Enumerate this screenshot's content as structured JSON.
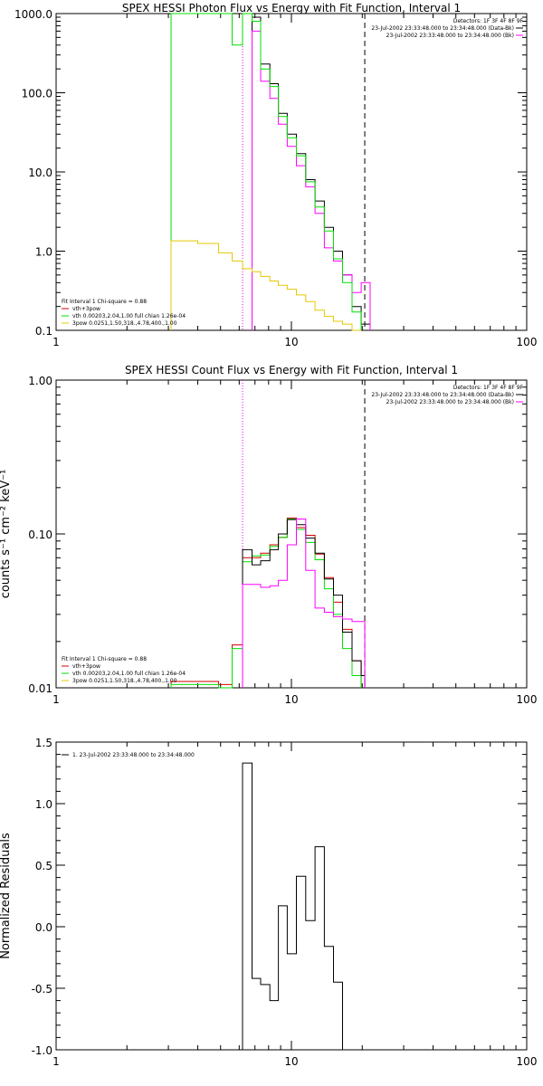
{
  "chart_data": [
    {
      "type": "line",
      "title": "SPEX HESSI Photon Flux vs Energy with Fit Function, Interval 1",
      "ylabel": "",
      "xscale": "log",
      "yscale": "log",
      "xlim": [
        1,
        100
      ],
      "ylim": [
        0.1,
        1000
      ],
      "xticklabels": [
        "1",
        "10",
        "100"
      ],
      "yticks": [
        0.1,
        1,
        10,
        100,
        1000
      ],
      "yticklabels": [
        "0.1",
        "1.0",
        "10.0",
        "100.0",
        "1000.0"
      ],
      "legend_left": [
        "Fit Interval 1    Chi-square = 0.88",
        "vth+3pow",
        "vth 0.00203,2.04,1.00  full chian 1.26e-04",
        "3pow 0.0251,1.50,318.,4.78,400.,1.00"
      ],
      "legend_left_colors": [
        "",
        "#d40000",
        "#00e000",
        "#e6c800"
      ],
      "legend_right": [
        "Detectors: 1F 3F 4F 8F 9F",
        "23-Jul-2002 23:33:48.000 to 23:34:48.000 (Data-Bk)",
        "23-Jul-2002 23:33:48.000 to 23:34:48.000 (Bk)"
      ],
      "legend_right_colors": [
        "",
        "#000000",
        "#ff00ff"
      ],
      "vlines": [
        {
          "x": 6.2,
          "style": "dotted",
          "color": "#000000"
        },
        {
          "x": 6.2,
          "style": "dotted",
          "color": "#ff00ff"
        },
        {
          "x": 20.5,
          "style": "dashed",
          "color": "#000000"
        }
      ],
      "series": [
        {
          "color": "#000000",
          "edges": [
            6.8,
            7.4,
            8.1,
            8.8,
            9.6,
            10.5,
            11.5,
            12.6,
            13.8,
            15.1,
            16.5,
            18.1,
            19.8,
            21.6
          ],
          "values": [
            900,
            230,
            130,
            55,
            30,
            17,
            8,
            4.3,
            2,
            1,
            0.5,
            0.2,
            0.12
          ]
        },
        {
          "color": "#ff00ff",
          "edges": [
            6.8,
            7.4,
            8.1,
            8.8,
            9.6,
            10.5,
            11.5,
            12.6,
            13.8,
            15.1,
            16.5,
            18.1,
            19.8,
            21.6
          ],
          "values": [
            600,
            140,
            85,
            40,
            21,
            12,
            6.5,
            3,
            1.1,
            0.75,
            0.5,
            0.3,
            0.4
          ]
        },
        {
          "color": "#00e000",
          "edges": [
            3.08,
            5.6,
            6.2,
            6.8,
            7.4,
            8.1,
            8.8,
            9.6,
            10.5,
            11.5,
            12.6,
            13.8,
            15.1,
            16.5,
            18.1,
            19.8
          ],
          "values": [
            1000,
            400,
            1000,
            800,
            200,
            120,
            50,
            27,
            16,
            7.5,
            3.6,
            1.8,
            0.8,
            0.4,
            0.17
          ]
        },
        {
          "color": "#e6c800",
          "edges": [
            3.08,
            4.0,
            4.9,
            5.6,
            6.2,
            6.8,
            7.4,
            8.1,
            8.8,
            9.6,
            10.5,
            11.5,
            12.6,
            13.8,
            15.1,
            16.5,
            18.1,
            19.8
          ],
          "values": [
            1.35,
            1.25,
            0.95,
            0.75,
            0.6,
            0.55,
            0.48,
            0.42,
            0.37,
            0.33,
            0.28,
            0.23,
            0.18,
            0.15,
            0.13,
            0.12,
            0.1
          ]
        }
      ]
    },
    {
      "type": "line",
      "title": "SPEX HESSI Count Flux vs Energy with Fit Function, Interval 1",
      "ylabel": "counts s⁻¹ cm⁻² keV⁻¹",
      "xscale": "log",
      "yscale": "log",
      "xlim": [
        1,
        100
      ],
      "ylim": [
        0.01,
        1
      ],
      "xticklabels": [
        "1",
        "10",
        "100"
      ],
      "yticks": [
        0.01,
        0.1,
        1
      ],
      "yticklabels": [
        "0.01",
        "0.10",
        "1.00"
      ],
      "legend_left": [
        "Fit Interval 1    Chi-square = 0.88",
        "vth+3pow",
        "vth 0.00203,2.04,1.00  full chian 1.26e-04",
        "3pow 0.0251,1.50,318.,4.78,400.,1.00"
      ],
      "legend_left_colors": [
        "",
        "#d40000",
        "#00e000",
        "#e6c800"
      ],
      "legend_right": [
        "Detectors: 1F 3F 4F 8F 9F",
        "23-Jul-2002 23:33:48.000 to 23:34:48.000 (Data-Bk)",
        "23-Jul-2002 23:33:48.000 to 23:34:48.000 (Bk)"
      ],
      "legend_right_colors": [
        "",
        "#000000",
        "#ff00ff"
      ],
      "vlines": [
        {
          "x": 6.2,
          "style": "dotted",
          "color": "#000000"
        },
        {
          "x": 6.2,
          "style": "dotted",
          "color": "#ff00ff"
        },
        {
          "x": 20.5,
          "style": "dashed",
          "color": "#000000"
        }
      ],
      "series": [
        {
          "color": "#d40000",
          "edges": [
            3.08,
            4.0,
            4.9,
            5.6,
            6.2,
            6.8,
            7.4,
            8.1,
            8.8,
            9.6,
            10.5,
            11.5,
            12.6,
            13.8,
            15.1,
            16.5,
            18.1,
            19.8
          ],
          "values": [
            0.011,
            0.011,
            0.0105,
            0.019,
            0.07,
            0.07,
            0.075,
            0.085,
            0.095,
            0.127,
            0.11,
            0.098,
            0.074,
            0.052,
            0.036,
            0.024,
            0.015
          ]
        },
        {
          "color": "#00e000",
          "edges": [
            3.08,
            4.0,
            4.9,
            5.6,
            6.2,
            6.8,
            7.4,
            8.1,
            8.8,
            9.6,
            10.5,
            11.5,
            12.6,
            13.8,
            15.1,
            16.5,
            18.1,
            19.8
          ],
          "values": [
            0.0105,
            0.0105,
            0.01,
            0.018,
            0.066,
            0.072,
            0.073,
            0.083,
            0.095,
            0.125,
            0.107,
            0.088,
            0.068,
            0.044,
            0.03,
            0.018,
            0.012
          ]
        },
        {
          "color": "#000000",
          "edges": [
            6.2,
            6.8,
            7.4,
            8.1,
            8.8,
            9.6,
            10.5,
            11.5,
            12.6,
            13.8,
            15.1,
            16.5,
            18.1,
            19.8,
            20.5
          ],
          "values": [
            0.079,
            0.063,
            0.067,
            0.079,
            0.1,
            0.124,
            0.115,
            0.094,
            0.075,
            0.051,
            0.04,
            0.023,
            0.015,
            0.012
          ]
        },
        {
          "color": "#ff00ff",
          "edges": [
            6.2,
            6.8,
            7.4,
            8.1,
            8.8,
            9.6,
            10.5,
            11.5,
            12.6,
            13.8,
            15.1,
            16.5,
            18.1,
            19.8,
            20.5
          ],
          "values": [
            0.047,
            0.047,
            0.045,
            0.046,
            0.05,
            0.085,
            0.125,
            0.058,
            0.033,
            0.031,
            0.029,
            0.028,
            0.027,
            0.027
          ]
        }
      ]
    },
    {
      "type": "line",
      "title": "",
      "ylabel": "Normalized Residuals",
      "xscale": "log",
      "yscale": "linear",
      "xlim": [
        1,
        100
      ],
      "ylim": [
        -1.0,
        1.5
      ],
      "xticklabels": [
        "1",
        "10",
        "100"
      ],
      "yticks": [
        -1.0,
        -0.5,
        0.0,
        0.5,
        1.0,
        1.5
      ],
      "yticklabels": [
        "-1.0",
        "-0.5",
        "0.0",
        "0.5",
        "1.0",
        "1.5"
      ],
      "legend_left": [
        "1. 23-Jul-2002 23:33:48.000 to 23:34:48.000"
      ],
      "legend_left_colors": [
        "#000000"
      ],
      "legend_right": [],
      "legend_right_colors": [],
      "vlines": [],
      "series": [
        {
          "color": "#000000",
          "edges": [
            6.2,
            6.8,
            7.4,
            8.1,
            8.8,
            9.6,
            10.5,
            11.5,
            12.6,
            13.8,
            15.1,
            16.5,
            18.1,
            19.8
          ],
          "values": [
            1.33,
            -0.42,
            -0.47,
            -0.6,
            0.17,
            -0.22,
            0.41,
            0.05,
            0.65,
            -0.16,
            -0.45,
            -1.0,
            -1.0
          ],
          "drop_to_floor": true
        }
      ]
    }
  ]
}
